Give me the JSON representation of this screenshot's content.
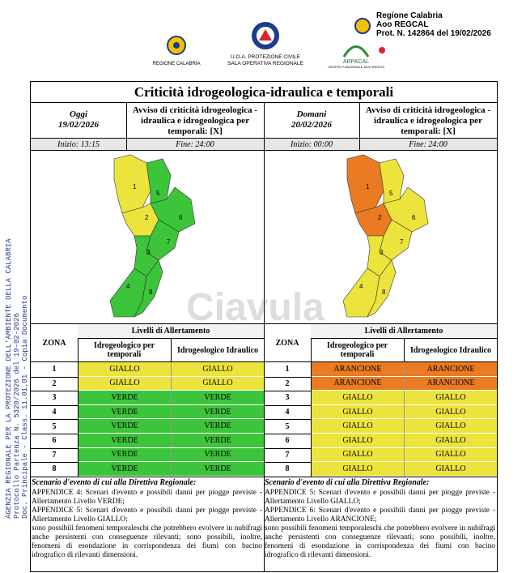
{
  "header": {
    "logos": [
      "REGIONE CALABRIA",
      "U.O.A. PROTEZIONE CIVILE",
      "SALA OPERATIVA REGIONALE",
      "ARPACAL",
      "CENTRO FUNZIONALE MULTIRISCHI"
    ],
    "stamp": [
      "Regione Calabria",
      "Aoo REGCAL",
      "Prot. N. 142864 del 19/02/2026"
    ]
  },
  "side_text": [
    "AGENZIA REGIONALE PER LA PROTEZIONE DELL'AMBIENTE DELLA CALABRIA",
    "Protocollo Partenza N. 5320/2026 del 19-02-2026",
    "Doc. Principale - Class. 11.01.01 - Copia Documento"
  ],
  "watermark": "Ciavula",
  "title": "Criticità idrogeologica-idraulica e temporali",
  "table_headers": {
    "zona": "ZONA",
    "levels": "Livelli di Allertamento",
    "col1": "Idrogeologico per temporali",
    "col2": "Idrogeologico Idraulico"
  },
  "level_colors": {
    "VERDE": "#3cc43a",
    "GIALLO": "#ece43c",
    "ARANCIONE": "#ea7b22"
  },
  "days": [
    {
      "label": "Oggi",
      "date": "19/02/2026",
      "avviso": "Avviso di criticità idrogeologica - idraulica e idrogeologica per temporali: [X]",
      "start": "Inizio: 13:15",
      "end": "Fine: 24:00",
      "rows": [
        {
          "zone": "1",
          "a": "GIALLO",
          "b": "GIALLO"
        },
        {
          "zone": "2",
          "a": "GIALLO",
          "b": "GIALLO"
        },
        {
          "zone": "3",
          "a": "VERDE",
          "b": "VERDE"
        },
        {
          "zone": "4",
          "a": "VERDE",
          "b": "VERDE"
        },
        {
          "zone": "5",
          "a": "VERDE",
          "b": "VERDE"
        },
        {
          "zone": "6",
          "a": "VERDE",
          "b": "VERDE"
        },
        {
          "zone": "7",
          "a": "VERDE",
          "b": "VERDE"
        },
        {
          "zone": "8",
          "a": "VERDE",
          "b": "VERDE"
        }
      ],
      "scenario_title": "Scenario d'evento di cui alla Direttiva Regionale:",
      "scenario": [
        "APPENDICE 4: Scenari d'evento e possibili danni per piogge previste - Allertamento Livello VERDE;",
        "APPENDICE 5: Scenari d'evento e possibili danni per piogge previste - Allertamento Livello GIALLO;",
        "sono possibili fenomeni temporaleschi che potrebbero evolvere in nubifragi anche persistenti con conseguenze rilevanti; sono possibili, inoltre, fenomeni di esondazione in corrispondenza dei fiumi con bacino idrografico di rilevanti dimensioni."
      ]
    },
    {
      "label": "Domani",
      "date": "20/02/2026",
      "avviso": "Avviso di criticità idrogeologica - idraulica e idrogeologica per temporali: [X]",
      "start": "Inizio: 00:00",
      "end": "Fine: 24:00",
      "rows": [
        {
          "zone": "1",
          "a": "ARANCIONE",
          "b": "ARANCIONE"
        },
        {
          "zone": "2",
          "a": "ARANCIONE",
          "b": "ARANCIONE"
        },
        {
          "zone": "3",
          "a": "GIALLO",
          "b": "GIALLO"
        },
        {
          "zone": "4",
          "a": "GIALLO",
          "b": "GIALLO"
        },
        {
          "zone": "5",
          "a": "GIALLO",
          "b": "GIALLO"
        },
        {
          "zone": "6",
          "a": "GIALLO",
          "b": "GIALLO"
        },
        {
          "zone": "7",
          "a": "GIALLO",
          "b": "GIALLO"
        },
        {
          "zone": "8",
          "a": "GIALLO",
          "b": "GIALLO"
        }
      ],
      "scenario_title": "Scenario d'evento di cui alla Direttiva Regionale:",
      "scenario": [
        "APPENDICE 5: Scenari d'evento e possibili danni per piogge previste - Allertamento Livello GIALLO;",
        "APPENDICE 6: Scenari d'evento e possibili danni per piogge previste - Allertamento Livello ARANCIONE;",
        "sono possibili fenomeni temporaleschi che potrebbero evolvere in nubifragi anche persistenti con conseguenze rilevanti; sono possibili, inoltre, fenomeni di esondazione in corrispondenza dei fiumi con bacino idrografico di rilevanti dimensioni."
      ]
    }
  ]
}
